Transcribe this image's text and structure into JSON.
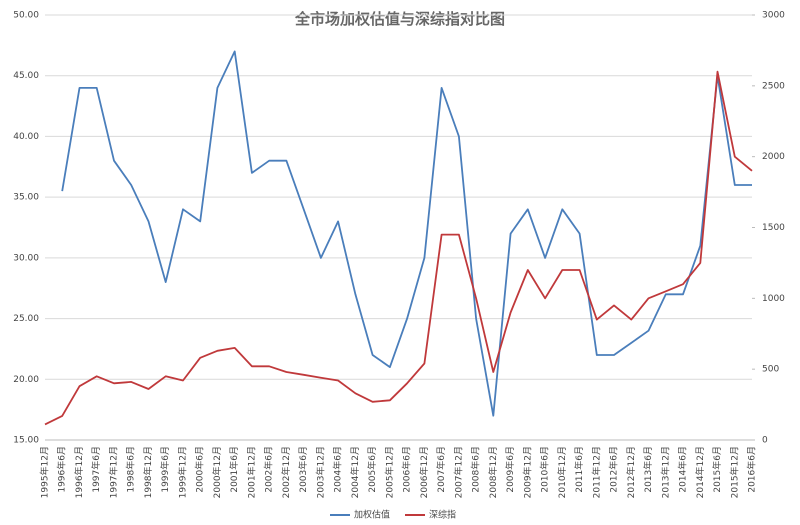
{
  "chart_data": {
    "type": "line",
    "title": "全市场加权估值与深综指对比图",
    "categories": [
      "1995年12月",
      "1996年6月",
      "1996年12月",
      "1997年6月",
      "1997年12月",
      "1998年6月",
      "1998年12月",
      "1999年6月",
      "1999年12月",
      "2000年6月",
      "2000年12月",
      "2001年6月",
      "2001年12月",
      "2002年6月",
      "2002年12月",
      "2003年6月",
      "2003年12月",
      "2004年6月",
      "2004年12月",
      "2005年6月",
      "2005年12月",
      "2006年6月",
      "2006年12月",
      "2007年6月",
      "2007年12月",
      "2008年6月",
      "2008年12月",
      "2009年6月",
      "2009年12月",
      "2010年6月",
      "2010年12月",
      "2011年6月",
      "2011年12月",
      "2012年6月",
      "2012年12月",
      "2013年6月",
      "2013年12月",
      "2014年6月",
      "2014年12月",
      "2015年6月",
      "2015年12月",
      "2016年6月"
    ],
    "series": [
      {
        "name": "加权估值",
        "color": "#4a7ebb",
        "values": [
          null,
          35.5,
          44,
          44,
          38,
          36,
          33,
          28,
          34,
          33,
          44,
          47,
          37,
          38,
          38,
          34,
          30,
          33,
          27,
          22,
          21,
          25,
          30,
          44,
          40,
          25,
          17,
          32,
          34,
          30,
          34,
          32,
          22,
          22,
          23,
          24,
          27,
          27,
          31,
          45,
          36,
          36
        ]
      },
      {
        "name": "深综指",
        "color": "#c0393b",
        "axis": "y2",
        "values": [
          110,
          170,
          380,
          450,
          400,
          410,
          360,
          450,
          420,
          580,
          630,
          650,
          520,
          520,
          480,
          460,
          440,
          420,
          330,
          270,
          280,
          400,
          540,
          1450,
          1450,
          1000,
          480,
          900,
          1200,
          1000,
          1200,
          1200,
          850,
          950,
          850,
          1000,
          1050,
          1100,
          1250,
          2600,
          2000,
          1900
        ]
      }
    ],
    "ylim": [
      15,
      50
    ],
    "yticks": [
      {
        "value": 15,
        "label": "15.00"
      },
      {
        "value": 20,
        "label": "20.00"
      },
      {
        "value": 25,
        "label": "25.00"
      },
      {
        "value": 30,
        "label": "30.00"
      },
      {
        "value": 35,
        "label": "35.00"
      },
      {
        "value": 40,
        "label": "40.00"
      },
      {
        "value": 45,
        "label": "45.00"
      },
      {
        "value": 50,
        "label": "50.00"
      }
    ],
    "y2lim": [
      0,
      3000
    ],
    "y2ticks": [
      0,
      500,
      1000,
      1500,
      2000,
      2500,
      3000
    ],
    "grid": true
  }
}
